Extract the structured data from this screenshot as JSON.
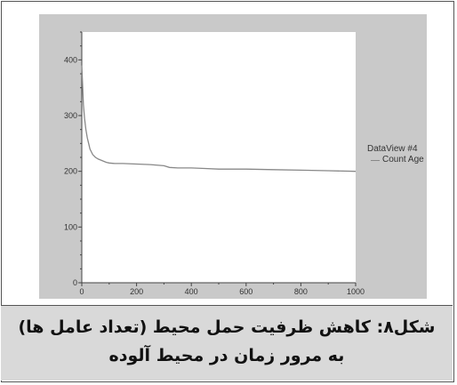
{
  "figure": {
    "caption_line1": "شکل۸: کاهش ظرفیت حمل محیط (تعداد عامل ها)",
    "caption_line2": "به مرور زمان در محیط آلوده"
  },
  "colors": {
    "panel": "#c9c9c9",
    "plot_background": "#ffffff",
    "series_line": "#888888",
    "axis": "#444444"
  },
  "chart_data": {
    "type": "line",
    "title": "",
    "xlabel": "",
    "ylabel": "",
    "xlim": [
      0,
      1000
    ],
    "ylim": [
      0,
      450
    ],
    "x_ticks": [
      0,
      200,
      400,
      600,
      800,
      1000
    ],
    "y_ticks": [
      0,
      100,
      200,
      300,
      400
    ],
    "grid": false,
    "legend_position": "right",
    "legend_title": "DataView #4",
    "series": [
      {
        "name": "Count Age",
        "color": "#888888",
        "x": [
          0,
          3,
          6,
          10,
          15,
          20,
          25,
          30,
          40,
          50,
          60,
          70,
          80,
          90,
          100,
          120,
          150,
          200,
          250,
          300,
          320,
          350,
          400,
          450,
          500,
          600,
          700,
          800,
          900,
          1000
        ],
        "y": [
          390,
          355,
          320,
          295,
          275,
          260,
          250,
          240,
          230,
          225,
          222,
          220,
          218,
          216,
          215,
          214,
          214,
          213,
          212,
          210,
          207,
          206,
          206,
          205,
          204,
          204,
          203,
          202,
          201,
          200
        ]
      }
    ]
  }
}
